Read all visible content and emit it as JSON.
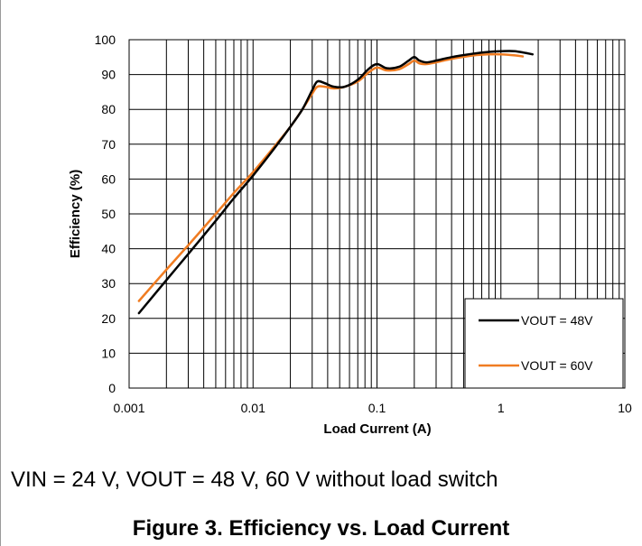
{
  "chart_data": {
    "type": "line",
    "xscale": "log",
    "xlim": [
      0.001,
      10
    ],
    "ylim": [
      0,
      100
    ],
    "xticks": [
      0.001,
      0.01,
      0.1,
      1,
      10
    ],
    "xtick_labels": [
      "0.001",
      "0.01",
      "0.1",
      "1",
      "10"
    ],
    "yticks": [
      0,
      10,
      20,
      30,
      40,
      50,
      60,
      70,
      80,
      90,
      100
    ],
    "ytick_labels": [
      "0",
      "10",
      "20",
      "30",
      "40",
      "50",
      "60",
      "70",
      "80",
      "90",
      "100"
    ],
    "xlabel": "Load Current (A)",
    "ylabel": "Efficiency (%)",
    "grid": true,
    "legend_position": "bottom-right",
    "series": [
      {
        "name": "VOUT = 48V",
        "color": "#000000",
        "x": [
          0.0012,
          0.002,
          0.003,
          0.005,
          0.007,
          0.01,
          0.015,
          0.02,
          0.025,
          0.03,
          0.033,
          0.038,
          0.045,
          0.055,
          0.07,
          0.085,
          0.1,
          0.12,
          0.15,
          0.18,
          0.2,
          0.22,
          0.25,
          0.3,
          0.4,
          0.6,
          0.8,
          1.0,
          1.3,
          1.8
        ],
        "y": [
          21.5,
          31,
          38.5,
          48,
          54.5,
          61,
          69,
          75,
          80,
          85.5,
          88,
          87.5,
          86.5,
          86.5,
          88.5,
          91.5,
          93,
          91.8,
          92.2,
          94,
          95,
          94,
          93.5,
          94,
          95,
          96,
          96.5,
          96.7,
          96.7,
          95.8
        ]
      },
      {
        "name": "VOUT = 60V",
        "color": "#f07c22",
        "x": [
          0.0012,
          0.002,
          0.003,
          0.005,
          0.007,
          0.01,
          0.015,
          0.02,
          0.025,
          0.03,
          0.033,
          0.038,
          0.045,
          0.055,
          0.07,
          0.085,
          0.1,
          0.12,
          0.15,
          0.18,
          0.2,
          0.22,
          0.25,
          0.3,
          0.4,
          0.6,
          0.8,
          1.0,
          1.3,
          1.5
        ],
        "y": [
          25,
          34,
          41,
          50,
          56,
          62,
          69.5,
          75,
          80,
          84.5,
          86.5,
          86.5,
          86,
          86.5,
          88,
          90.5,
          92,
          91.2,
          91.5,
          93,
          94,
          93.2,
          93,
          93.5,
          94.5,
          95.5,
          95.8,
          95.8,
          95.5,
          95.2
        ]
      }
    ]
  },
  "caption": "VIN = 24 V, VOUT = 48 V, 60 V without load switch",
  "figure_title": "Figure 3. Efficiency vs. Load Current"
}
